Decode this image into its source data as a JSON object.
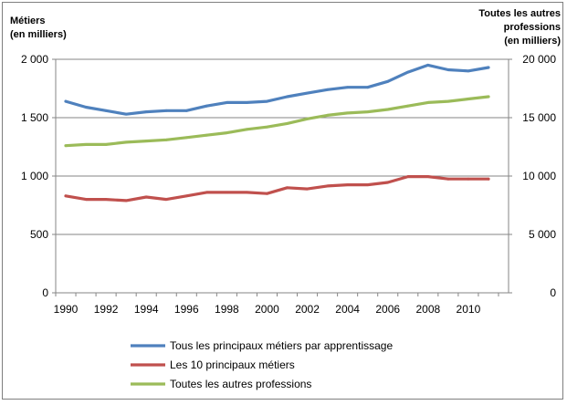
{
  "chart_data": {
    "type": "line",
    "title": "",
    "left_axis_title": [
      "Métiers",
      "(en milliers)"
    ],
    "right_axis_title": [
      "Toutes les autres",
      "professions",
      "(en milliers)"
    ],
    "x": [
      1990,
      1991,
      1992,
      1993,
      1994,
      1995,
      1996,
      1997,
      1998,
      1999,
      2000,
      2001,
      2002,
      2003,
      2004,
      2005,
      2006,
      2007,
      2008,
      2009,
      2010,
      2011
    ],
    "x_tick_labels": [
      "1990",
      "1992",
      "1994",
      "1996",
      "1998",
      "2000",
      "2002",
      "2004",
      "2006",
      "2008",
      "2010"
    ],
    "y_left_ticks": [
      "0",
      "500",
      "1 000",
      "1 500",
      "2 000"
    ],
    "y_right_ticks": [
      "0",
      "5 000",
      "10 000",
      "15 000",
      "20 000"
    ],
    "ylim_left": [
      0,
      2000
    ],
    "ylim_right": [
      0,
      20000
    ],
    "grid": "horizontal",
    "legend_position": "bottom",
    "series": [
      {
        "name": "Tous les principaux métiers par apprentissage",
        "axis": "left",
        "color": "#4f81bd",
        "values": [
          1640,
          1590,
          1560,
          1530,
          1550,
          1560,
          1560,
          1600,
          1630,
          1630,
          1640,
          1680,
          1710,
          1740,
          1760,
          1760,
          1810,
          1890,
          1950,
          1910,
          1900,
          1930
        ]
      },
      {
        "name": "Les 10 principaux métiers",
        "axis": "left",
        "color": "#c0504d",
        "values": [
          830,
          800,
          800,
          790,
          820,
          800,
          830,
          860,
          860,
          860,
          850,
          900,
          890,
          915,
          925,
          925,
          945,
          995,
          995,
          975,
          975,
          975
        ]
      },
      {
        "name": "Toutes les autres professions",
        "axis": "right",
        "color": "#9bbb59",
        "values": [
          12600,
          12700,
          12700,
          12900,
          13000,
          13100,
          13300,
          13500,
          13700,
          14000,
          14200,
          14500,
          14900,
          15200,
          15400,
          15500,
          15700,
          16000,
          16300,
          16400,
          16600,
          16800
        ]
      }
    ]
  }
}
